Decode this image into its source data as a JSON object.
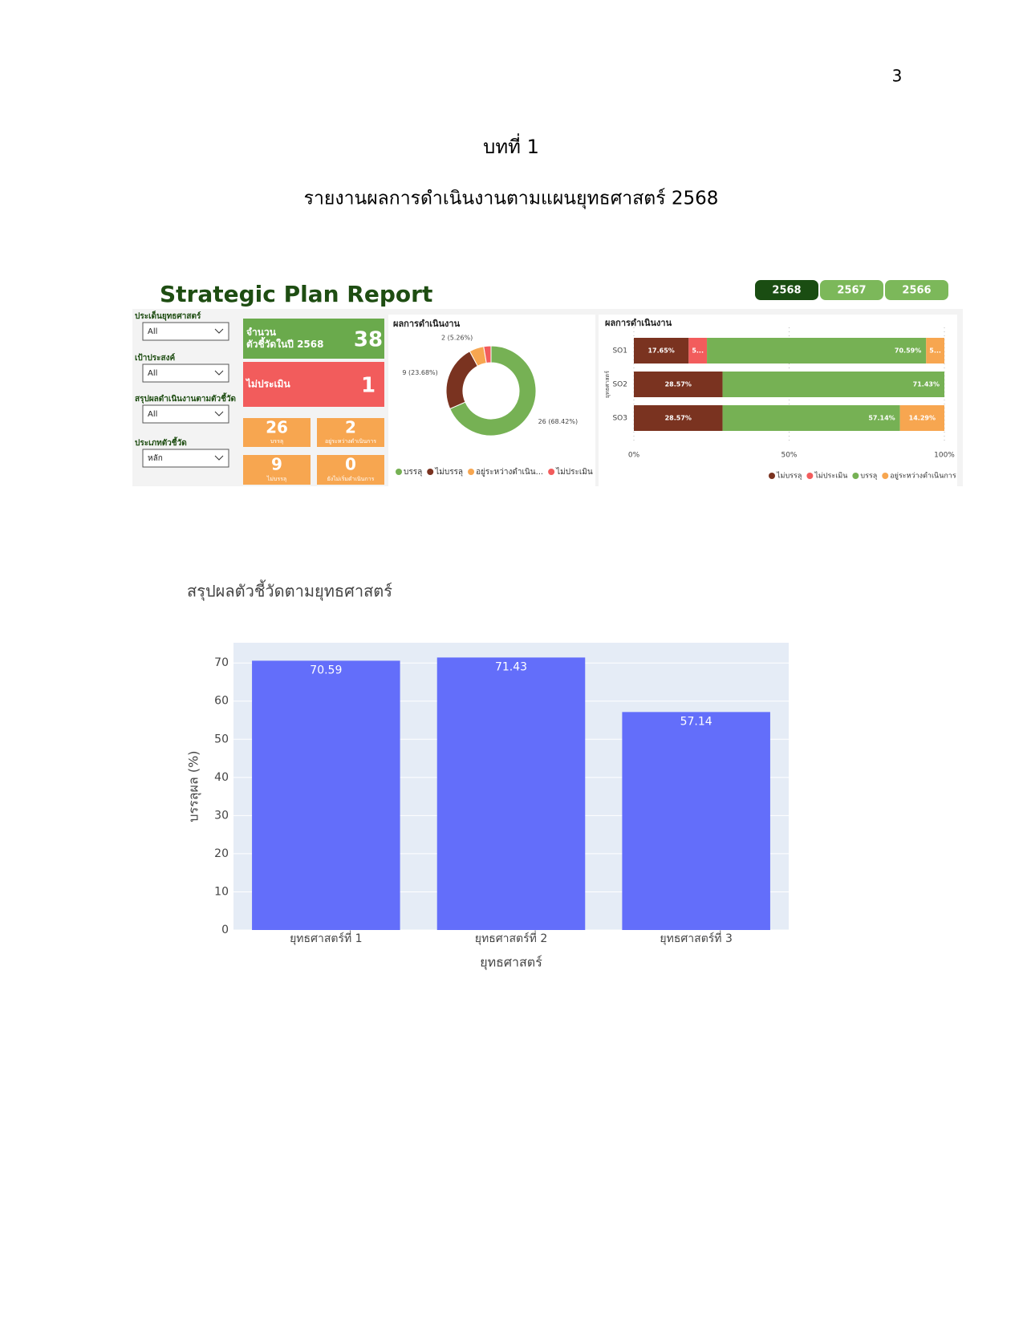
{
  "page_number": "3",
  "chapter": "บทที่ 1",
  "heading": "รายงานผลการดำเนินงานตามแผนยุทธศาสตร์ 2568",
  "dashboard": {
    "title": "Strategic Plan Report",
    "years": [
      "2568",
      "2567",
      "2566"
    ],
    "filters": [
      {
        "label": "ประเด็นยุทธศาสตร์",
        "value": "All"
      },
      {
        "label": "เป้าประสงค์",
        "value": "All"
      },
      {
        "label": "สรุปผลดำเนินงานตามตัวชี้วัด",
        "value": "All"
      },
      {
        "label": "ประเภทตัวชี้วัด",
        "value": "หลัก"
      }
    ],
    "cards": [
      {
        "label": [
          "จำนวน",
          "ตัวชี้วัดในปี 2568"
        ],
        "value": 38
      },
      {
        "label": [
          "ไม่ประเมิน"
        ],
        "value": 1
      },
      {
        "label": [
          "บรรลุ"
        ],
        "value": 26
      },
      {
        "label": [
          "อยู่ระหว่างดำเนินการ"
        ],
        "value": 2
      },
      {
        "label": [
          "ไม่บรรลุ"
        ],
        "value": 9
      },
      {
        "label": [
          "ยังไม่เริ่มดำเนินการ"
        ],
        "value": 0
      }
    ]
  },
  "chart_data": [
    {
      "type": "donut",
      "title": "ผลการดำเนินงาน",
      "categories": [
        "บรรลุ",
        "ไม่บรรลุ",
        "อยู่ระหว่างดำเนิน...",
        "ไม่ประเมิน"
      ],
      "values": [
        26,
        9,
        2,
        1
      ],
      "value_labels": [
        "26 (68.42%)",
        "9 (23.68%)",
        "2 (5.26%)",
        null
      ],
      "colors": [
        "#76b154",
        "#7a3320",
        "#f7a650",
        "#f25c5c"
      ]
    },
    {
      "type": "stacked-hbar",
      "title": "ผลการดำเนินงาน",
      "y_label": "ยุทธศาสตร์",
      "categories": [
        "SO1",
        "SO2",
        "SO3"
      ],
      "series": [
        {
          "name": "ไม่บรรลุ",
          "color": "#7a3320",
          "values": [
            17.65,
            28.57,
            28.57
          ],
          "value_labels": [
            "17.65%",
            "28.57%",
            "28.57%"
          ]
        },
        {
          "name": "ไม่ประเมิน",
          "color": "#f25c5c",
          "values": [
            5.88,
            0,
            0
          ],
          "value_labels": [
            "5...",
            null,
            null
          ]
        },
        {
          "name": "บรรลุ",
          "color": "#76b154",
          "values": [
            70.59,
            71.43,
            57.14
          ],
          "value_labels": [
            "70.59%",
            "71.43%",
            "57.14%"
          ]
        },
        {
          "name": "อยู่ระหว่างดำเนินการ",
          "color": "#f7a650",
          "values": [
            5.88,
            0,
            14.29
          ],
          "value_labels": [
            "5...",
            null,
            "14.29%"
          ]
        }
      ],
      "xlim": [
        0,
        100
      ],
      "xticks": [
        {
          "value": 0,
          "label": "0%"
        },
        {
          "value": 50,
          "label": "50%"
        },
        {
          "value": 100,
          "label": "100%"
        }
      ]
    },
    {
      "type": "bar",
      "title": "สรุปผลตัวชี้วัดตามยุทธศาสตร์",
      "x_label": "ยุทธศาสตร์",
      "y_label": "บรรลุผล (%)",
      "categories": [
        "ยุทธศาสตร์ที่ 1",
        "ยุทธศาสตร์ที่ 2",
        "ยุทธศาสตร์ที่ 3"
      ],
      "values": [
        70.59,
        71.43,
        57.14
      ],
      "color": "#636efa",
      "ylim": [
        0,
        75.3
      ],
      "yticks": [
        0,
        10,
        20,
        30,
        40,
        50,
        60,
        70
      ],
      "grid": true
    }
  ]
}
